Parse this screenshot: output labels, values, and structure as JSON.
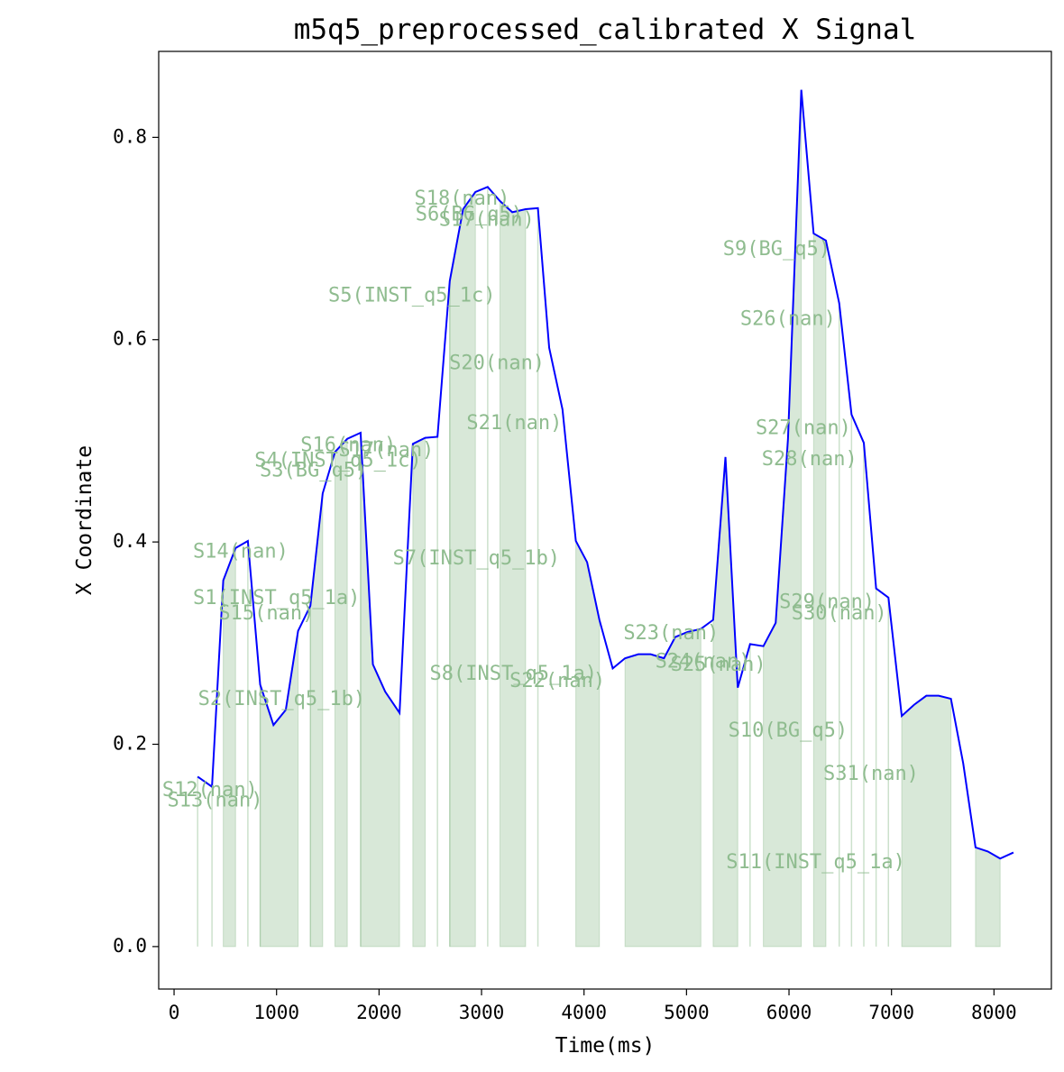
{
  "chart_data": {
    "type": "line",
    "title": "m5q5_preprocessed_calibrated X Signal",
    "xlabel": "Time(ms)",
    "ylabel": "X Coordinate",
    "xlim": [
      -150,
      8560
    ],
    "ylim": [
      -0.042,
      0.885
    ],
    "xticks": [
      0,
      1000,
      2000,
      3000,
      4000,
      5000,
      6000,
      7000,
      8000
    ],
    "yticks": [
      0.0,
      0.2,
      0.4,
      0.6,
      0.8
    ],
    "xtick_labels": [
      "0",
      "1000",
      "2000",
      "3000",
      "4000",
      "5000",
      "6000",
      "7000",
      "8000"
    ],
    "ytick_labels": [
      "0.0",
      "0.2",
      "0.4",
      "0.6",
      "0.8"
    ],
    "grid": false,
    "line_color": "#0000ff",
    "fill_color": "#8fbc8f",
    "label_color": "#8fbc8f",
    "series": [
      {
        "x": [
          230,
          370,
          480,
          600,
          720,
          840,
          970,
          1090,
          1210,
          1330,
          1450,
          1570,
          1690,
          1820,
          1940,
          2060,
          2200,
          2330,
          2450,
          2570,
          2690,
          2820,
          2940,
          3060,
          3180,
          3300,
          3430,
          3550,
          3660,
          3790,
          3920,
          4030,
          4150,
          4280,
          4400,
          4530,
          4650,
          4780,
          4890,
          5010,
          5140,
          5260,
          5380,
          5500,
          5620,
          5750,
          5870,
          5990,
          6120,
          6240,
          6360,
          6490,
          6610,
          6730,
          6850,
          6970,
          7100,
          7220,
          7340,
          7460,
          7580,
          7700,
          7820,
          7940,
          8060,
          8190
        ],
        "y": [
          0.168,
          0.158,
          0.362,
          0.394,
          0.401,
          0.259,
          0.219,
          0.234,
          0.312,
          0.337,
          0.448,
          0.489,
          0.502,
          0.508,
          0.279,
          0.252,
          0.231,
          0.497,
          0.503,
          0.504,
          0.658,
          0.729,
          0.746,
          0.751,
          0.737,
          0.726,
          0.729,
          0.73,
          0.592,
          0.531,
          0.401,
          0.38,
          0.323,
          0.275,
          0.285,
          0.289,
          0.289,
          0.285,
          0.306,
          0.311,
          0.314,
          0.323,
          0.484,
          0.256,
          0.299,
          0.297,
          0.32,
          0.502,
          0.847,
          0.705,
          0.698,
          0.636,
          0.526,
          0.498,
          0.354,
          0.345,
          0.228,
          0.239,
          0.248,
          0.248,
          0.245,
          0.181,
          0.098,
          0.094,
          0.087,
          0.093
        ]
      }
    ],
    "segments": [
      {
        "label": "S1(INST_q5_1a)",
        "x0": 480,
        "x1": 600
      },
      {
        "label": "S2(INST_q5_1b)",
        "x0": 840,
        "x1": 1210
      },
      {
        "label": "S3(BG_q5)",
        "x0": 1330,
        "x1": 1450
      },
      {
        "label": "S4(INST_q5_1c)",
        "x0": 1570,
        "x1": 1690
      },
      {
        "label": "S5(INST_q5_1c)",
        "x0": 1820,
        "x1": 2200
      },
      {
        "label": "S6(BG_q5)",
        "x0": 2690,
        "x1": 2940
      },
      {
        "label": "S7(INST_q5_1b)",
        "x0": 2330,
        "x1": 2450
      },
      {
        "label": "S8(INST_q5_1a)",
        "x0": 3180,
        "x1": 3430
      },
      {
        "label": "S9(BG_q5)",
        "x0": 6240,
        "x1": 6360
      },
      {
        "label": "S10(BG_q5)",
        "x0": 5750,
        "x1": 6120
      },
      {
        "label": "S11(INST_q5_1a)",
        "x0": 7100,
        "x1": 7580
      },
      {
        "label": "S12(nan)",
        "x0": 230,
        "x1": 230
      },
      {
        "label": "S13(nan)",
        "x0": 370,
        "x1": 370
      },
      {
        "label": "S14(nan)",
        "x0": 720,
        "x1": 720
      },
      {
        "label": "S15(nan)",
        "x0": 840,
        "x1": 840
      },
      {
        "label": "S16(nan)",
        "x0": 1330,
        "x1": 1330
      },
      {
        "label": "S17(nan)",
        "x0": 1820,
        "x1": 1820
      },
      {
        "label": "S18(nan)",
        "x0": 2570,
        "x1": 2570
      },
      {
        "label": "S17(nan)",
        "x0": 3060,
        "x1": 3060
      },
      {
        "label": "S20(nan)",
        "x0": 2690,
        "x1": 2690
      },
      {
        "label": "S21(nan)",
        "x0": 3550,
        "x1": 3550
      },
      {
        "label": "S22(nan)",
        "x0": 3920,
        "x1": 4150
      },
      {
        "label": "S23(nan)",
        "x0": 4400,
        "x1": 5140
      },
      {
        "label": "S24(nan)",
        "x0": 5260,
        "x1": 5500
      },
      {
        "label": "S25(nan)",
        "x0": 5620,
        "x1": 5620
      },
      {
        "label": "S26(nan)",
        "x0": 6490,
        "x1": 6490
      },
      {
        "label": "S27(nan)",
        "x0": 6610,
        "x1": 6610
      },
      {
        "label": "S28(nan)",
        "x0": 6730,
        "x1": 6730
      },
      {
        "label": "S29(nan)",
        "x0": 6850,
        "x1": 6850
      },
      {
        "label": "S30(nan)",
        "x0": 6970,
        "x1": 6970
      },
      {
        "label": "S31(nan)",
        "x0": 7820,
        "x1": 8060
      }
    ],
    "annotations": [
      {
        "text": "S1(INST_q5_1a)",
        "x": 1000,
        "y": 0.344
      },
      {
        "text": "S2(INST_q5_1b)",
        "x": 1050,
        "y": 0.244
      },
      {
        "text": "S3(BG_q5)",
        "x": 1360,
        "y": 0.47
      },
      {
        "text": "S4(INST_q5_1c)",
        "x": 1600,
        "y": 0.48
      },
      {
        "text": "S5(INST_q5_1c)",
        "x": 2320,
        "y": 0.643
      },
      {
        "text": "S6(BG_q5)",
        "x": 2880,
        "y": 0.723
      },
      {
        "text": "S7(INST_q5_1b)",
        "x": 2950,
        "y": 0.383
      },
      {
        "text": "S8(INST_q5_1a)",
        "x": 3310,
        "y": 0.269
      },
      {
        "text": "S9(BG_q5)",
        "x": 5880,
        "y": 0.689
      },
      {
        "text": "S10(BG_q5)",
        "x": 5990,
        "y": 0.213
      },
      {
        "text": "S11(INST_q5_1a)",
        "x": 6260,
        "y": 0.083
      },
      {
        "text": "S12(nan)",
        "x": 350,
        "y": 0.154
      },
      {
        "text": "S13(nan)",
        "x": 400,
        "y": 0.144
      },
      {
        "text": "S14(nan)",
        "x": 650,
        "y": 0.39
      },
      {
        "text": "S15(nan)",
        "x": 900,
        "y": 0.329
      },
      {
        "text": "S16(nan)",
        "x": 1700,
        "y": 0.495
      },
      {
        "text": "S17(nan)",
        "x": 2070,
        "y": 0.49
      },
      {
        "text": "S18(nan)",
        "x": 2810,
        "y": 0.739
      },
      {
        "text": "S17(nan)",
        "x": 3050,
        "y": 0.718
      },
      {
        "text": "S20(nan)",
        "x": 3150,
        "y": 0.576
      },
      {
        "text": "S21(nan)",
        "x": 3320,
        "y": 0.517
      },
      {
        "text": "S22(nan)",
        "x": 3740,
        "y": 0.262
      },
      {
        "text": "S23(nan)",
        "x": 4850,
        "y": 0.309
      },
      {
        "text": "S24(nan)",
        "x": 5160,
        "y": 0.281
      },
      {
        "text": "S25(nan)",
        "x": 5310,
        "y": 0.278
      },
      {
        "text": "S26(nan)",
        "x": 5990,
        "y": 0.62
      },
      {
        "text": "S27(nan)",
        "x": 6140,
        "y": 0.512
      },
      {
        "text": "S28(nan)",
        "x": 6200,
        "y": 0.481
      },
      {
        "text": "S29(nan)",
        "x": 6370,
        "y": 0.34
      },
      {
        "text": "S30(nan)",
        "x": 6490,
        "y": 0.329
      },
      {
        "text": "S31(nan)",
        "x": 6800,
        "y": 0.17
      }
    ]
  }
}
